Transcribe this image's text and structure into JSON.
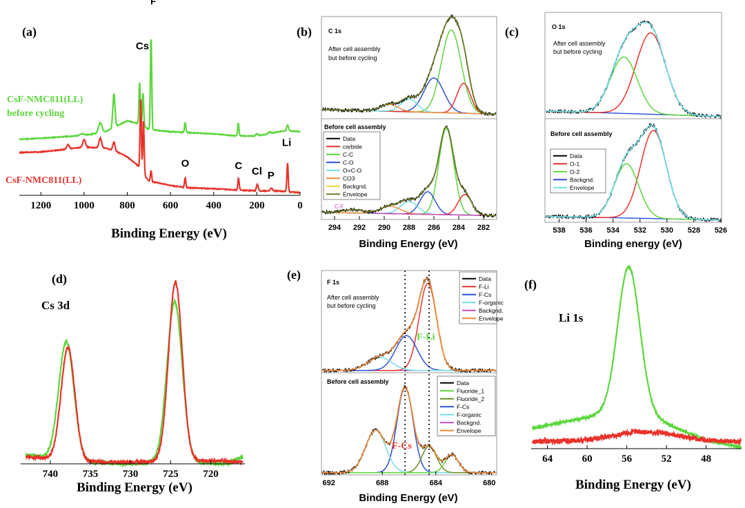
{
  "colors": {
    "green": "#5CD63C",
    "red": "#E8322A",
    "blue": "#2B4FD6",
    "cyan": "#74DDE6",
    "olive": "#6B8E23",
    "orange": "#F08A3A",
    "yellow": "#F2D22E",
    "magenta": "#C44CC4",
    "dark_olive": "#6A7A2A",
    "black": "#000000",
    "baseline": "#8090D0"
  },
  "chart_data": [
    {
      "id": "a",
      "type": "line",
      "panel_label": "(a)",
      "xlabel": "Binding Energy (eV)",
      "xlim": [
        1300,
        0
      ],
      "xticks": [
        1200,
        1000,
        800,
        600,
        400,
        200,
        0
      ],
      "series": [
        {
          "name": "CsF-NMC811(LL) before cycling",
          "label_lines": [
            "CsF-NMC811(LL)",
            "before cycling"
          ],
          "color": "#5CD63C",
          "offset": 2.55,
          "bg": [
            [
              1300,
              0.0
            ],
            [
              1200,
              0.05
            ],
            [
              1000,
              0.18
            ],
            [
              900,
              0.35
            ],
            [
              800,
              0.85
            ],
            [
              740,
              0.7
            ],
            [
              700,
              0.45
            ],
            [
              600,
              0.35
            ],
            [
              400,
              0.25
            ],
            [
              300,
              0.16
            ],
            [
              200,
              0.15
            ],
            [
              100,
              0.35
            ],
            [
              60,
              0.4
            ],
            [
              0,
              0.35
            ]
          ],
          "peaks": [
            {
              "c": 862,
              "h": 1.55,
              "w": 5
            },
            {
              "c": 925,
              "h": 0.45,
              "w": 8
            },
            {
              "c": 1008,
              "h": 0.08,
              "w": 10
            },
            {
              "c": 743,
              "h": 1.9,
              "w": 3
            },
            {
              "c": 727,
              "h": 1.5,
              "w": 3
            },
            {
              "c": 690,
              "h": 4.3,
              "w": 3
            },
            {
              "c": 532,
              "h": 0.45,
              "w": 3
            },
            {
              "c": 286,
              "h": 0.6,
              "w": 3
            },
            {
              "c": 200,
              "h": 0.1,
              "w": 5
            },
            {
              "c": 140,
              "h": 0.08,
              "w": 5
            },
            {
              "c": 58,
              "h": 0.25,
              "w": 4
            }
          ]
        },
        {
          "name": "CsF-NMC811(LL)",
          "label_lines": [
            "CsF-NMC811(LL)"
          ],
          "color": "#E8322A",
          "offset": 0.0,
          "bg": [
            [
              1300,
              1.95
            ],
            [
              1200,
              1.98
            ],
            [
              1100,
              2.08
            ],
            [
              1000,
              2.2
            ],
            [
              900,
              2.15
            ],
            [
              850,
              2.0
            ],
            [
              800,
              1.75
            ],
            [
              750,
              1.35
            ],
            [
              720,
              0.9
            ],
            [
              700,
              0.65
            ],
            [
              600,
              0.45
            ],
            [
              530,
              0.35
            ],
            [
              400,
              0.3
            ],
            [
              300,
              0.25
            ],
            [
              200,
              0.2
            ],
            [
              100,
              0.2
            ],
            [
              0,
              0.12
            ]
          ],
          "peaks": [
            {
              "c": 1075,
              "h": 0.2,
              "w": 6
            },
            {
              "c": 1000,
              "h": 0.35,
              "w": 6
            },
            {
              "c": 925,
              "h": 0.45,
              "w": 6
            },
            {
              "c": 862,
              "h": 0.4,
              "w": 5
            },
            {
              "c": 738,
              "h": 3.3,
              "w": 3
            },
            {
              "c": 725,
              "h": 2.5,
              "w": 3
            },
            {
              "c": 690,
              "h": 0.5,
              "w": 3
            },
            {
              "c": 532,
              "h": 0.45,
              "w": 3
            },
            {
              "c": 285,
              "h": 0.55,
              "w": 3
            },
            {
              "c": 198,
              "h": 0.3,
              "w": 4
            },
            {
              "c": 133,
              "h": 0.12,
              "w": 5
            },
            {
              "c": 58,
              "h": 1.3,
              "w": 3
            }
          ]
        }
      ],
      "annotations": [
        {
          "text": "Cs",
          "x": 730,
          "y": 6.65
        },
        {
          "text": "F",
          "x": 680,
          "y": 8.7
        },
        {
          "text": "O",
          "x": 532,
          "y": 1.3
        },
        {
          "text": "C",
          "x": 285,
          "y": 1.2
        },
        {
          "text": "Cl",
          "x": 200,
          "y": 0.95
        },
        {
          "text": "P",
          "x": 135,
          "y": 0.75
        },
        {
          "text": "Li",
          "x": 62,
          "y": 2.25
        }
      ]
    },
    {
      "id": "b_top",
      "type": "line",
      "panel_label": "(b)",
      "title": "C 1s",
      "note_lines": [
        "After cell assembly",
        "but before cycling"
      ],
      "xlim": [
        295,
        281
      ],
      "components": [
        {
          "name": "C-C",
          "center": 284.6,
          "height": 1.8,
          "width": 0.8,
          "color": "#5CD63C"
        },
        {
          "name": "C-O",
          "center": 286.0,
          "height": 0.75,
          "width": 0.8,
          "color": "#2B4FD6"
        },
        {
          "name": "carbide",
          "center": 283.6,
          "height": 0.65,
          "width": 0.55,
          "color": "#E8322A"
        },
        {
          "name": "O=C-O",
          "center": 288.0,
          "height": 0.28,
          "width": 0.65,
          "color": "#74DDE6"
        },
        {
          "name": "CO3",
          "center": 289.6,
          "height": 0.15,
          "width": 0.7,
          "color": "#F08A3A"
        }
      ],
      "background": {
        "name": "Backgnd.",
        "color": "#F2D22E",
        "left": 0.15,
        "right": 0.05
      },
      "envelope_color": "#6A7A2A",
      "data_color": "#000000"
    },
    {
      "id": "b_bottom",
      "type": "line",
      "note_lines": [
        "Before cell assembly"
      ],
      "xlabel": "Binding Energy (eV)",
      "xlim": [
        295,
        281
      ],
      "xticks": [
        294,
        292,
        290,
        288,
        286,
        284,
        282
      ],
      "legend": [
        "Data",
        "carbide",
        "C-C",
        "C-O",
        "O=C-O",
        "CO3",
        "Backgnd.",
        "Envelope"
      ],
      "extra_label": "C-F",
      "components": [
        {
          "name": "C-C",
          "center": 285.0,
          "height": 2.1,
          "width": 0.6,
          "color": "#5CD63C"
        },
        {
          "name": "C-O",
          "center": 286.5,
          "height": 0.55,
          "width": 0.6,
          "color": "#2B4FD6"
        },
        {
          "name": "carbide",
          "center": 283.5,
          "height": 0.5,
          "width": 0.55,
          "color": "#E8322A"
        },
        {
          "name": "O=C-O",
          "center": 288.0,
          "height": 0.3,
          "width": 0.7,
          "color": "#74DDE6"
        },
        {
          "name": "CO3",
          "center": 289.5,
          "height": 0.18,
          "width": 0.8,
          "color": "#F08A3A"
        },
        {
          "name": "C-F",
          "center": 292.5,
          "height": 0.08,
          "width": 0.8,
          "color": "#C44CC4"
        }
      ],
      "background": {
        "name": "Backgnd.",
        "color": "#F2D22E",
        "left": 0.12,
        "right": 0.04
      },
      "envelope_color": "#6A7A2A",
      "data_color": "#000000"
    },
    {
      "id": "c_top",
      "type": "line",
      "panel_label": "(c)",
      "title": "O 1s",
      "note_lines": [
        "After cell assembly",
        "but before cycling"
      ],
      "xlim": [
        539,
        526
      ],
      "components": [
        {
          "name": "O-1",
          "center": 531.2,
          "height": 1.8,
          "width": 1.1,
          "color": "#E8322A"
        },
        {
          "name": "O-2",
          "center": 533.2,
          "height": 1.25,
          "width": 1.0,
          "color": "#5CD63C"
        }
      ],
      "background": {
        "name": "Backgnd.",
        "color": "#2B4FD6",
        "left": 0.12,
        "right": 0.0
      },
      "envelope_color": "#74DDE6",
      "data_color": "#000000"
    },
    {
      "id": "c_bottom",
      "type": "line",
      "note_lines": [
        "Before cell assembly"
      ],
      "xlabel": "Binding energy (eV)",
      "xlim": [
        539,
        526
      ],
      "xticks": [
        538,
        536,
        534,
        532,
        530,
        528,
        526
      ],
      "legend": [
        "Data",
        "O-1",
        "O-2",
        "Backgnd.",
        "Envelope"
      ],
      "components": [
        {
          "name": "O-1",
          "center": 531.0,
          "height": 1.95,
          "width": 0.95,
          "color": "#E8322A"
        },
        {
          "name": "O-2",
          "center": 533.0,
          "height": 1.2,
          "width": 0.9,
          "color": "#5CD63C"
        }
      ],
      "background": {
        "name": "Backgnd.",
        "color": "#2B4FD6",
        "left": 0.08,
        "right": 0.0
      },
      "envelope_color": "#74DDE6",
      "data_color": "#000000"
    },
    {
      "id": "d",
      "type": "line",
      "panel_label": "(d)",
      "title": "Cs 3d",
      "xlabel": "Binding Energy (eV)",
      "xlim": [
        743,
        716
      ],
      "xticks": [
        740,
        735,
        730,
        725,
        720
      ],
      "series": [
        {
          "name": "green",
          "color": "#5CD63C",
          "peaks": [
            {
              "c": 738.0,
              "h": 1.62,
              "w": 0.95
            },
            {
              "c": 724.5,
              "h": 2.2,
              "w": 0.95
            }
          ],
          "bg": [
            [
              743,
              0.12
            ],
            [
              735,
              0.02
            ],
            [
              730,
              0.0
            ],
            [
              725,
              0.03
            ],
            [
              718,
              0.0
            ],
            [
              716,
              0.1
            ]
          ]
        },
        {
          "name": "red",
          "color": "#E8322A",
          "peaks": [
            {
              "c": 737.8,
              "h": 1.55,
              "w": 0.85
            },
            {
              "c": 724.4,
              "h": 2.45,
              "w": 0.85
            }
          ],
          "bg": [
            [
              743,
              0.1
            ],
            [
              735,
              0.03
            ],
            [
              730,
              0.02
            ],
            [
              725,
              0.05
            ],
            [
              718,
              0.04
            ],
            [
              716,
              0.02
            ]
          ]
        }
      ]
    },
    {
      "id": "e_top",
      "type": "line",
      "panel_label": "(e)",
      "title": "F 1s",
      "note_lines": [
        "After cell assembly",
        "but before cycling"
      ],
      "annotation": "F-Li",
      "xlim": [
        692.5,
        679.5
      ],
      "legend": [
        "Data",
        "F-Li",
        "F-Cs",
        "F-organic",
        "Backgnd.",
        "Envelope"
      ],
      "dotted_x": [
        686.3,
        684.5
      ],
      "components": [
        {
          "name": "F-Li",
          "center": 684.6,
          "height": 2.0,
          "width": 0.65,
          "color": "#E8322A"
        },
        {
          "name": "F-Cs",
          "center": 686.2,
          "height": 0.8,
          "width": 0.8,
          "color": "#2B4FD6"
        },
        {
          "name": "F-organic",
          "center": 688.2,
          "height": 0.3,
          "width": 0.9,
          "color": "#74DDE6"
        }
      ],
      "background": {
        "name": "Backgnd.",
        "color": "#C44CC4",
        "left": 0.0,
        "right": 0.0
      },
      "envelope_color": "#F08A3A",
      "data_color": "#000000"
    },
    {
      "id": "e_bottom",
      "type": "line",
      "note_lines": [
        "Before cell assembly"
      ],
      "annotation": "F-Cs",
      "xlabel": "Binding Energy (eV)",
      "xlim": [
        692.5,
        679.5
      ],
      "xticks": [
        692,
        688,
        684,
        680
      ],
      "legend": [
        "Data",
        "Fluoride_1",
        "Fluoride_2",
        "F-Cs",
        "F-organic",
        "Backgnd.",
        "Envelope"
      ],
      "dotted_x": [
        686.3,
        684.5
      ],
      "components": [
        {
          "name": "F-Cs",
          "center": 686.3,
          "height": 2.0,
          "width": 0.6,
          "color": "#2B4FD6"
        },
        {
          "name": "F-organic",
          "center": 688.5,
          "height": 1.0,
          "width": 0.75,
          "color": "#74DDE6"
        },
        {
          "name": "Fluoride_2",
          "center": 684.5,
          "height": 0.62,
          "width": 0.55,
          "color": "#6B8E23"
        },
        {
          "name": "Fluoride_1",
          "center": 682.8,
          "height": 0.42,
          "width": 0.5,
          "color": "#5CD63C"
        }
      ],
      "background": {
        "name": "Backgnd.",
        "color": "#C44CC4",
        "left": 0.0,
        "right": 0.0
      },
      "envelope_color": "#F08A3A",
      "data_color": "#000000"
    },
    {
      "id": "f",
      "type": "line",
      "panel_label": "(f)",
      "title": "Li 1s",
      "xlabel": "Binding Energy (eV)",
      "xlim": [
        65.5,
        44.5
      ],
      "xticks": [
        64,
        60,
        56,
        52,
        48
      ],
      "series": [
        {
          "name": "green",
          "color": "#5CD63C",
          "noise": 0.03,
          "peaks": [
            {
              "c": 55.8,
              "h": 2.1,
              "w": 1.1
            }
          ],
          "bg": [
            [
              65.5,
              0.3
            ],
            [
              60,
              0.45
            ],
            [
              57,
              0.55
            ],
            [
              54,
              0.5
            ],
            [
              51,
              0.3
            ],
            [
              48,
              0.12
            ],
            [
              44.5,
              0.02
            ]
          ]
        },
        {
          "name": "red",
          "color": "#E8322A",
          "noise": 0.07,
          "peaks": [],
          "bg": [
            [
              65.5,
              0.1
            ],
            [
              60,
              0.12
            ],
            [
              55,
              0.25
            ],
            [
              52,
              0.22
            ],
            [
              48,
              0.12
            ],
            [
              44.5,
              0.1
            ]
          ]
        }
      ]
    }
  ]
}
